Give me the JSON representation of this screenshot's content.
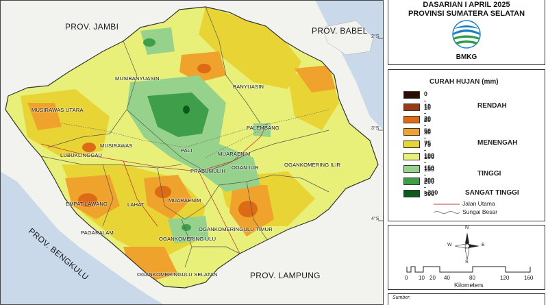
{
  "header": {
    "title_line1": "DASARIAN I APRIL 2025",
    "title_line2": "PROVINSI SUMATERA SELATAN",
    "logo_text": "BMKG"
  },
  "neighbors": {
    "jambi": "PROV. JAMBI",
    "babel": "PROV. BABEL",
    "bengkulu": "PROV. BENGKULU",
    "lampung": "PROV. LAMPUNG"
  },
  "regions": {
    "musibanyuasin": "MUSIBANYUASIN",
    "banyuasin": "BANYUASIN",
    "musirawas_utara": "MUSIRAWAS UTARA",
    "musirawas": "MUSIRAWAS",
    "lubuklinggau": "LUBUKLINGGAU",
    "palembang": "PALEMBANG",
    "pali": "PALI",
    "muaraenim_n": "MUARAENIM",
    "prabumulih": "PRABUMULIH",
    "ogan_ilir": "OGAN ILIR",
    "oki": "OGANKOMERING ILIR",
    "empat_lawang": "EMPAT LAWANG",
    "lahat": "LAHAT",
    "muaraenim_s": "MUARAENIM",
    "pagaralam": "PAGARALAM",
    "oku": "OGANKOMERING ULU",
    "oku_timur": "OGANKOMERINGULU TIMUR",
    "oku_selatan": "OGANKOMERINGULU SELATAN"
  },
  "lat_labels": [
    "2°S",
    "3°S",
    "4°S"
  ],
  "legend": {
    "title": "CURAH HUJAN (mm)",
    "classes": [
      {
        "range": "0 - 10",
        "color": "#2b0e06"
      },
      {
        "range": "10 - 20",
        "color": "#9a3a12"
      },
      {
        "range": "20 - 50",
        "color": "#dd6a14"
      },
      {
        "range": "50 - 75",
        "color": "#f0a32c"
      },
      {
        "range": "75 - 100",
        "color": "#e9d435"
      },
      {
        "range": "100 - 150",
        "color": "#e8f07a"
      },
      {
        "range": "150 - 200",
        "color": "#96d28c"
      },
      {
        "range": "200 - 300",
        "color": "#3f9e4a"
      },
      {
        "range": ">300",
        "color": "#0d5a1f"
      }
    ],
    "categories": {
      "rendah": "RENDAH",
      "menengah": "MENENGAH",
      "tinggi": "TINGGI",
      "sangat_tinggi": "SANGAT TINGGI"
    },
    "line_items": {
      "road": "Jalan Utama",
      "river": "Sungai Besar"
    },
    "road_color": "#c0392b",
    "river_color": "#666666"
  },
  "compass": {
    "n": "N",
    "s": "S",
    "e": "E",
    "w": "W"
  },
  "scalebar": {
    "ticks": [
      "0",
      "10",
      "20",
      "40",
      "80",
      "120",
      "160"
    ],
    "unit": "Kilometers"
  },
  "source_label": "Sumber:",
  "colors": {
    "sea": "#c9d9ea",
    "land_outside": "#f4f4f0",
    "accent_blue": "#1c7fc1",
    "accent_green": "#2e9b4a"
  }
}
